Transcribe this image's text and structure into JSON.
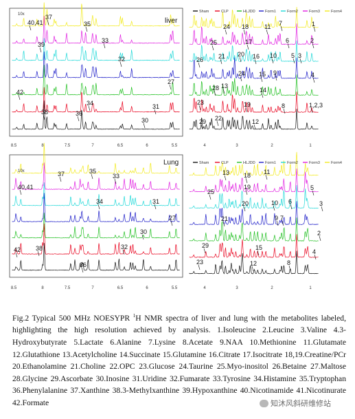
{
  "panels": [
    {
      "id": "liver-aromatic",
      "title": "liver",
      "scale_label": "10x",
      "ticks": [
        "8.5",
        "8",
        "7.5",
        "7",
        "6.5",
        "6",
        "5.5"
      ],
      "labels": [
        "37",
        "40,41",
        "35",
        "39",
        "33",
        "32",
        "27",
        "42",
        "31",
        "38",
        "36",
        "34",
        "30"
      ]
    },
    {
      "id": "liver-aliphatic",
      "title": "",
      "ticks": [
        "4",
        "3",
        "2",
        "1"
      ],
      "labels": [
        "24",
        "18",
        "11",
        "7",
        "1",
        "25",
        "17",
        "6",
        "2",
        "26",
        "21",
        "20",
        "16",
        "10",
        "5",
        "3",
        "24",
        "15",
        "9",
        "4",
        "28",
        "13",
        "14",
        "23",
        "19",
        "8",
        "1,2,3",
        "29",
        "22",
        "12"
      ]
    },
    {
      "id": "lung-aromatic",
      "title": "Lung",
      "scale_label": "10x",
      "ticks": [
        "8.5",
        "8",
        "7.5",
        "7",
        "6.5",
        "6",
        "5.5"
      ],
      "labels": [
        "37",
        "35",
        "33",
        "40,41",
        "34",
        "31",
        "27",
        "30",
        "42",
        "38",
        "32",
        "36"
      ]
    },
    {
      "id": "lung-aliphatic",
      "title": "",
      "ticks": [
        "4",
        "3",
        "2",
        "1"
      ],
      "labels": [
        "13",
        "18",
        "11",
        "25",
        "19",
        "5",
        "10",
        "6",
        "3",
        "20",
        "21",
        "9",
        "7",
        "2",
        "29",
        "15",
        "4",
        "23",
        "12",
        "8"
      ]
    }
  ],
  "legend": [
    "Sham",
    "CLP",
    "HLJDD",
    "Form1",
    "Form2",
    "Form3",
    "Form4"
  ],
  "series_colors": [
    "#111111",
    "#e8001c",
    "#1fbf1f",
    "#1c1cc8",
    "#1fd8d8",
    "#e01ce0",
    "#f2ea1c"
  ],
  "caption": {
    "lead": "Fig.2 Typical 500 MHz NOESYPR ",
    "sup": "1",
    "rest": "H NMR spectra of liver and lung with the metabolites labeled, highlighting the high resolution achieved by analysis. 1.Isoleucine 2.Leucine 3.Valine 4.3-Hydroxybutyrate 5.Lactate 6.Alanine 7.Lysine 8.Acetate 9.NAA 10.Methionine 11.Glutamate 12.Glutathione 13.Acetylcholine 14.Succinate 15.Glutamine 16.Citrate 17.Isocitrate 18,19.Creatine/PCr 20.Ethanolamine 21.Choline 22.OPC 23.Glucose 24.Taurine 25.Myo-inositol 26.Betaine 27.Maltose 28.Glycine 29.Ascorbate 30.Inosine 31.Uridine 32.Fumarate 33.Tyrosine 34.Histamine 35.Tryptophan 36.Phenylalanine 37.Xanthine 38.3-Methylxanthine 39.Hypoxanthine 40.Nicotinamide 41.Nicotinurate 42.Formate"
  },
  "watermark": "知沐风斜研维修站"
}
